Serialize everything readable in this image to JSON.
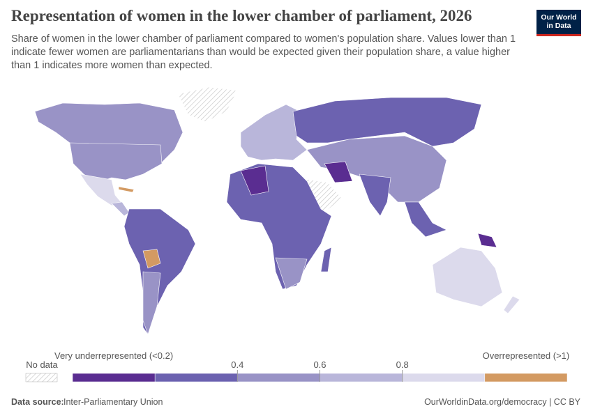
{
  "header": {
    "title": "Representation of women in the lower chamber of parliament, 2026",
    "subtitle": "Share of women in the lower chamber of parliament compared to women's population share. Values lower than 1 indicate fewer women are parliamentarians than would be expected given their population share, a value higher than 1 indicates more women than expected.",
    "logo": [
      "Our World",
      "in Data"
    ]
  },
  "legend": {
    "no_data": "No data",
    "bins": [
      {
        "label": "Very underrepresented (<0.2)",
        "color": "#5a2d91"
      },
      {
        "label": null,
        "color": "#6c62b0"
      },
      {
        "label": null,
        "color": "#9993c6"
      },
      {
        "label": null,
        "color": "#b9b6da"
      },
      {
        "label": null,
        "color": "#dcdaec"
      },
      {
        "label": "Overrepresented (>1)",
        "color": "#d39a62"
      }
    ],
    "ticks": [
      0.4,
      0.6,
      0.8
    ]
  },
  "footer": {
    "source_label": "Data source:",
    "source": "Inter-Parliamentary Union",
    "url": "OurWorldinData.org/democracy | CC BY"
  }
}
